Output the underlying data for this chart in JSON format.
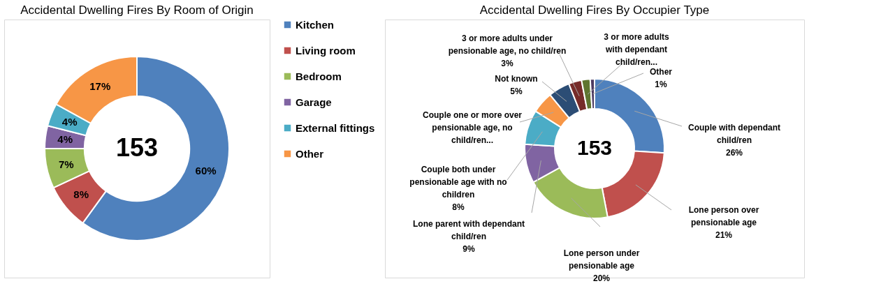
{
  "chart_data": [
    {
      "type": "donut",
      "title": "Accidental Dwelling Fires By Room of Origin",
      "categories": [
        "Kitchen",
        "Living room",
        "Bedroom",
        "Garage",
        "External fittings",
        "Other"
      ],
      "values": [
        60,
        8,
        7,
        4,
        4,
        17
      ],
      "value_labels": [
        "60%",
        "8%",
        "7%",
        "4%",
        "4%",
        "17%"
      ],
      "colors": [
        "#4f81bd",
        "#c0504d",
        "#9bbb59",
        "#8064a2",
        "#4bacc6",
        "#f79646"
      ],
      "legend": "right",
      "annotations": [
        "153"
      ]
    },
    {
      "type": "donut",
      "title": "Accidental Dwelling Fires By Occupier Type",
      "categories": [
        "Couple with dependant child/ren",
        "Lone person over pensionable age",
        "Lone person under pensionable age",
        "Lone parent with dependant child/ren",
        "Couple both under pensionable age with no children",
        "Couple one or more over pensionable age, no child/ren...",
        "Not known",
        "3 or more adults under pensionable age, no child/ren",
        "3 or more adults with dependant child/ren...",
        "Other"
      ],
      "values": [
        26,
        21,
        20,
        9,
        8,
        5,
        5,
        3,
        2,
        1
      ],
      "value_labels": [
        "26%",
        "21%",
        "20%",
        "9%",
        "8%",
        null,
        "5%",
        "3%",
        null,
        "1%"
      ],
      "colors": [
        "#4f81bd",
        "#c0504d",
        "#9bbb59",
        "#8064a2",
        "#4bacc6",
        "#f79646",
        "#2c4d75",
        "#772c2a",
        "#5f7530",
        "#4d3b62"
      ],
      "legend": false,
      "annotations": [
        "153"
      ]
    }
  ]
}
